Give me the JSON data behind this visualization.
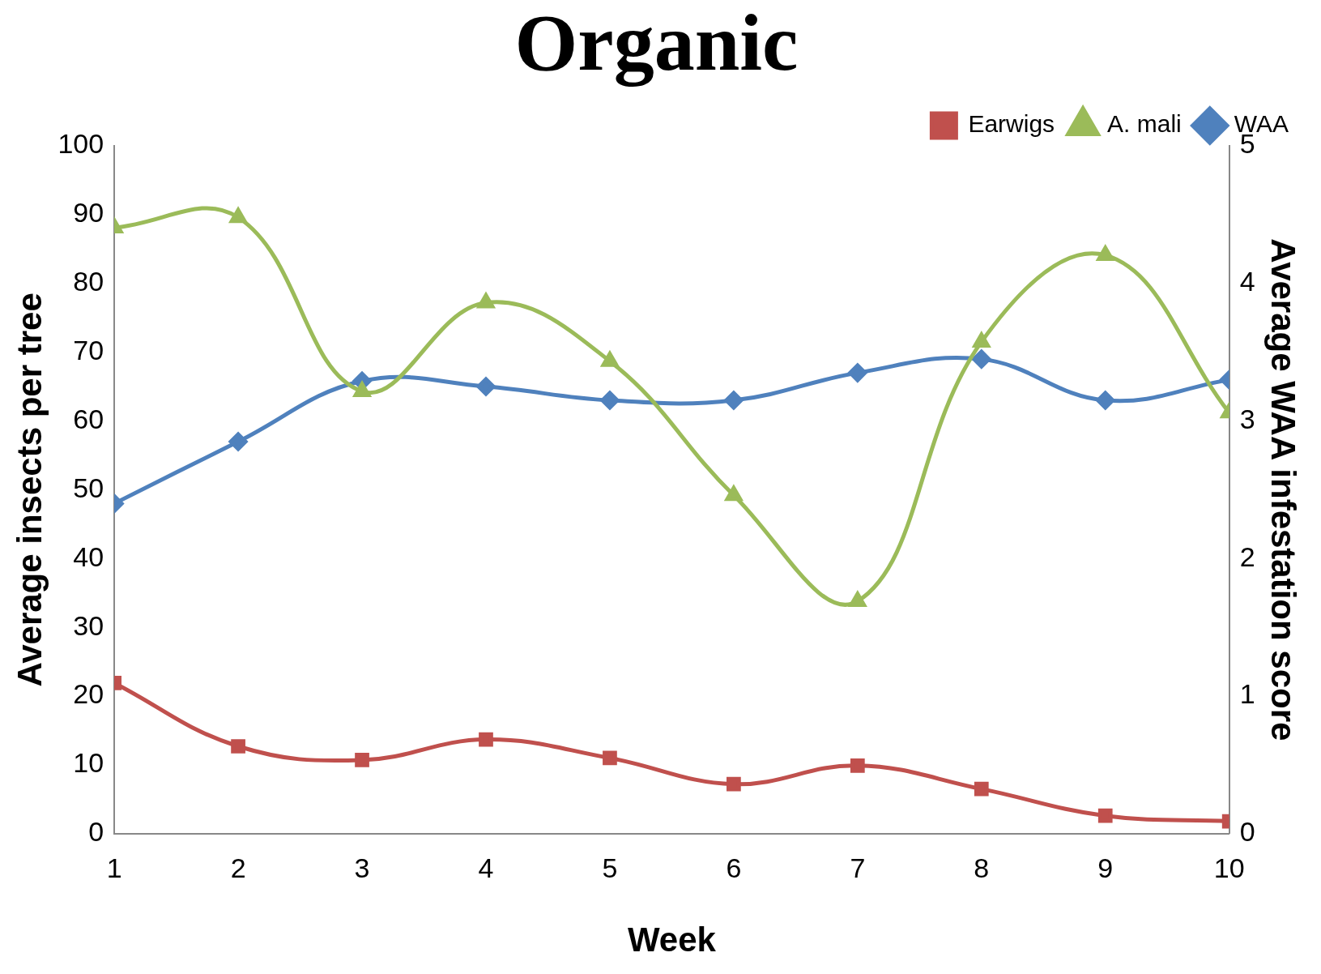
{
  "chart_data": {
    "type": "line",
    "title": "Organic",
    "xlabel": "Week",
    "ylabel": "Average insects per tree",
    "y2label": "Average WAA infestation score",
    "x": [
      1,
      2,
      3,
      4,
      5,
      6,
      7,
      8,
      9,
      10
    ],
    "xlim": [
      1,
      10
    ],
    "xticks": [
      1,
      2,
      3,
      4,
      5,
      6,
      7,
      8,
      9,
      10
    ],
    "ylim": [
      0,
      100
    ],
    "yticks": [
      0,
      10,
      20,
      30,
      40,
      50,
      60,
      70,
      80,
      90,
      100
    ],
    "y2lim": [
      0,
      5
    ],
    "y2ticks": [
      0,
      1,
      2,
      3,
      4,
      5
    ],
    "legend": "top right",
    "grid": false,
    "series": [
      {
        "name": "Earwigs",
        "color": "#c0504d",
        "marker": "square",
        "values": [
          21.9,
          12.7,
          10.7,
          13.7,
          11.0,
          7.2,
          9.9,
          6.5,
          2.6,
          1.8
        ]
      },
      {
        "name": "A. mali",
        "color": "#9bbb59",
        "marker": "triangle",
        "values": [
          88.1,
          89.6,
          64.3,
          77.2,
          68.7,
          49.2,
          33.8,
          71.5,
          84.1,
          61.2
        ]
      },
      {
        "name": "WAA",
        "color": "#4f81bd",
        "marker": "diamond",
        "axis": "y2",
        "values": [
          2.4,
          2.85,
          3.29,
          3.25,
          3.15,
          3.15,
          3.35,
          3.45,
          3.15,
          3.3
        ]
      }
    ]
  }
}
